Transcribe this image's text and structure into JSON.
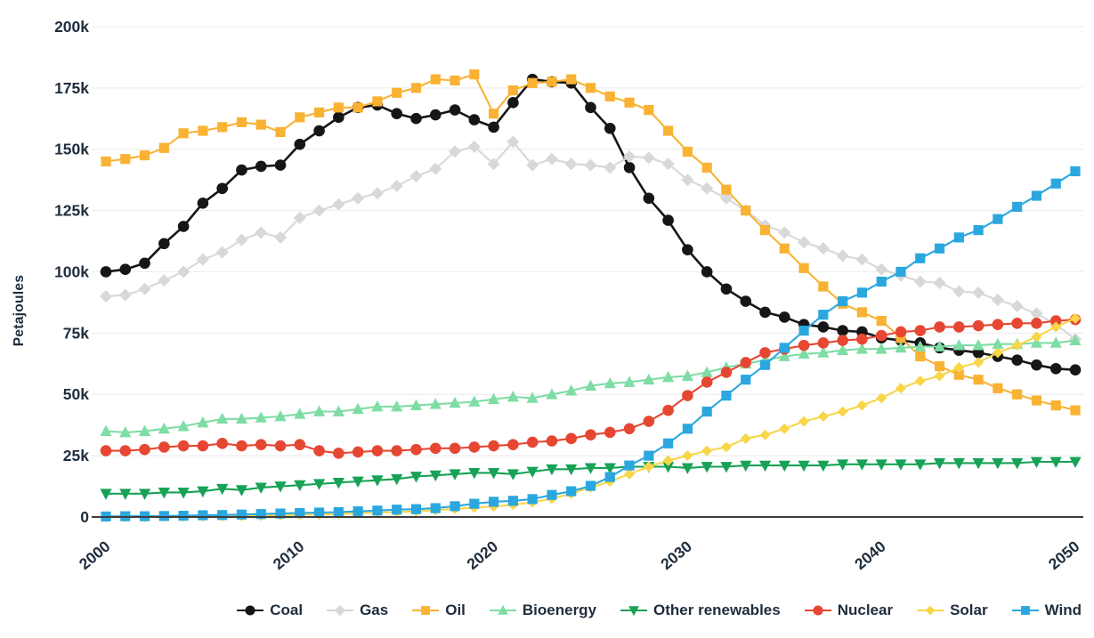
{
  "chart_data": {
    "type": "line",
    "title": "",
    "xlabel": "",
    "ylabel": "Petajoules",
    "ylim": [
      0,
      200
    ],
    "unit": "thousand petajoules",
    "grid": true,
    "legend_position": "bottom",
    "x": [
      2000,
      2001,
      2002,
      2003,
      2004,
      2005,
      2006,
      2007,
      2008,
      2009,
      2010,
      2011,
      2012,
      2013,
      2014,
      2015,
      2016,
      2017,
      2018,
      2019,
      2020,
      2021,
      2022,
      2023,
      2024,
      2025,
      2026,
      2027,
      2028,
      2029,
      2030,
      2031,
      2032,
      2033,
      2034,
      2035,
      2036,
      2037,
      2038,
      2039,
      2040,
      2041,
      2042,
      2043,
      2044,
      2045,
      2046,
      2047,
      2048,
      2049,
      2050
    ],
    "xticks": [
      2000,
      2010,
      2020,
      2030,
      2040,
      2050
    ],
    "yticks": [
      0,
      25,
      50,
      75,
      100,
      125,
      150,
      175,
      200
    ],
    "ytick_labels": [
      "0",
      "25k",
      "50k",
      "75k",
      "100k",
      "125k",
      "150k",
      "175k",
      "200k"
    ],
    "series": [
      {
        "name": "Coal",
        "color": "#161616",
        "marker": "circle",
        "values": [
          100,
          101,
          103.5,
          111.5,
          118.5,
          128,
          134,
          141.5,
          143,
          143.5,
          152,
          157.5,
          163,
          167,
          168,
          164.5,
          162.5,
          164,
          166,
          162,
          159,
          169,
          178.5,
          177.5,
          177,
          167,
          158.5,
          142.5,
          130,
          121,
          109,
          100,
          93,
          88,
          83.5,
          81.5,
          78.5,
          77.5,
          76,
          75.5,
          73,
          72,
          71,
          69,
          68,
          67,
          65.5,
          64,
          62,
          60.5,
          60
        ]
      },
      {
        "name": "Gas",
        "color": "#d8d8d8",
        "marker": "diamond",
        "values": [
          90,
          90.5,
          93,
          96.5,
          100,
          105,
          108,
          113,
          116,
          114,
          122,
          125,
          127.5,
          130,
          132,
          135,
          139,
          142,
          149,
          151,
          144,
          153,
          143.5,
          146,
          144,
          143.5,
          142.5,
          147,
          146.5,
          144,
          137.5,
          134,
          130,
          125,
          119,
          116,
          112,
          109.5,
          106.5,
          105,
          101,
          98.5,
          96,
          95.5,
          92,
          91.5,
          88.5,
          86,
          83,
          78.5,
          72.5
        ]
      },
      {
        "name": "Oil",
        "color": "#f9b233",
        "marker": "square",
        "values": [
          145,
          146,
          147.5,
          150.5,
          156.5,
          157.5,
          159,
          161,
          160,
          157,
          163,
          165,
          167,
          167,
          169.5,
          173,
          175,
          178.5,
          178,
          180.5,
          164.5,
          174,
          177,
          177.5,
          178.5,
          175,
          171.5,
          169,
          166,
          157.5,
          149,
          142.5,
          133.5,
          125,
          117,
          109.5,
          101.5,
          94,
          87,
          83.5,
          80,
          73,
          65.5,
          61.5,
          58,
          56,
          52.5,
          50,
          47.5,
          45.5,
          43.5
        ]
      },
      {
        "name": "Bioenergy",
        "color": "#7edda4",
        "marker": "triangle-up",
        "values": [
          35,
          34.5,
          35,
          36,
          37,
          38.5,
          40,
          40,
          40.5,
          41,
          42,
          43,
          43,
          44,
          45,
          45,
          45.5,
          46,
          46.5,
          47,
          48,
          49,
          48.5,
          50,
          51.5,
          53.5,
          54.5,
          55,
          56,
          57,
          57.5,
          59,
          61,
          62.5,
          64,
          65.5,
          66.5,
          67,
          68,
          68.5,
          68.5,
          69,
          69.5,
          69.5,
          70,
          70,
          70.5,
          70.5,
          71,
          71,
          72
        ]
      },
      {
        "name": "Other renewables",
        "color": "#17a257",
        "marker": "triangle-down",
        "values": [
          9.5,
          9.5,
          9.5,
          10,
          10,
          10.5,
          11.5,
          11,
          12,
          12.5,
          13,
          13.5,
          14,
          14.5,
          15,
          15.5,
          16.5,
          17,
          17.5,
          18,
          18,
          17.5,
          18.5,
          19.5,
          19.5,
          20,
          20,
          20.5,
          20.5,
          20.5,
          20,
          20.5,
          20.5,
          21,
          21,
          21,
          21,
          21,
          21.5,
          21.5,
          21.5,
          21.5,
          21.5,
          22,
          22,
          22,
          22,
          22,
          22.5,
          22.5,
          22.5
        ]
      },
      {
        "name": "Nuclear",
        "color": "#e64733",
        "marker": "circle",
        "values": [
          27,
          27,
          27.5,
          28.5,
          29,
          29,
          30,
          29,
          29.5,
          29,
          29.5,
          27,
          26,
          26.5,
          27,
          27,
          27.5,
          28,
          28,
          28.5,
          29,
          29.5,
          30.5,
          31,
          32,
          33.5,
          34.5,
          36,
          39,
          43.5,
          49.5,
          55,
          59,
          63,
          67,
          68.5,
          70,
          71,
          72,
          72.5,
          74,
          75.5,
          76,
          77.5,
          77.5,
          78,
          78.5,
          79,
          79,
          80,
          80.5
        ]
      },
      {
        "name": "Solar",
        "color": "#f8d648",
        "marker": "diamond-small",
        "values": [
          0.1,
          0.1,
          0.1,
          0.2,
          0.2,
          0.3,
          0.3,
          0.4,
          0.5,
          0.7,
          0.9,
          1,
          1.2,
          1.5,
          1.8,
          2,
          2.3,
          2.8,
          3.3,
          3.8,
          4.3,
          5,
          6,
          7.5,
          9.5,
          12,
          14.5,
          17.5,
          20.5,
          23,
          25,
          27,
          28.5,
          32,
          33.5,
          36,
          39,
          41,
          43,
          45.5,
          48.5,
          52.5,
          55.5,
          57.5,
          61,
          63,
          67,
          70,
          73.5,
          77.5,
          81
        ]
      },
      {
        "name": "Wind",
        "color": "#2ba7df",
        "marker": "square",
        "values": [
          0.2,
          0.3,
          0.3,
          0.4,
          0.5,
          0.7,
          0.8,
          1,
          1.2,
          1.4,
          1.6,
          1.8,
          2,
          2.3,
          2.6,
          3,
          3.2,
          3.6,
          4.4,
          5.4,
          6.2,
          6.6,
          7.3,
          9,
          10.5,
          12.7,
          16.3,
          21,
          25,
          30,
          36,
          43,
          49.5,
          56,
          62,
          69,
          76,
          82.5,
          88,
          91.5,
          96,
          100,
          105.5,
          109.5,
          114,
          117,
          121.5,
          126.5,
          131,
          136,
          141
        ]
      }
    ],
    "colors": {
      "grid": "#ededed",
      "axis_line": "#3d3d3d",
      "text": "#1f2d3d",
      "background": "#ffffff"
    }
  }
}
